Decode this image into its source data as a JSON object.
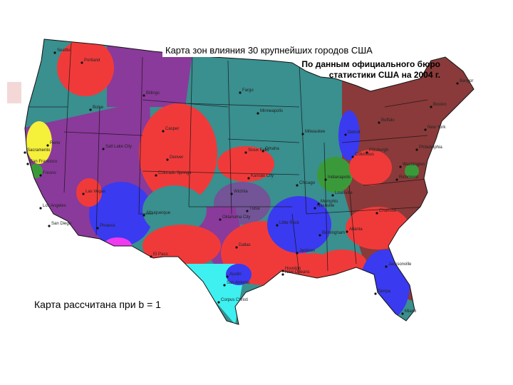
{
  "title": "Карта зон влияния 30 крупнейших городов США",
  "source": [
    "По данным официального бюро",
    "статистики США на 2004 г."
  ],
  "note": "Карта рассчитана при b = 1",
  "cities": [
    "Seattle",
    "Portland",
    "Boise",
    "Billings",
    "Sacramento",
    "San Francisco",
    "Fresno",
    "Los Angeles",
    "San Diego",
    "Las Vegas",
    "Phoenix",
    "Salt Lake City",
    "Reno",
    "Casper",
    "Denver",
    "Colorado Springs",
    "Albuquerque",
    "Fargo",
    "Minneapolis",
    "Sioux Falls",
    "Omaha",
    "Kansas City",
    "Wichita",
    "Oklahoma City",
    "Tulsa",
    "Dallas",
    "Austin",
    "San Antonio",
    "Houston",
    "Corpus Christi",
    "El Paso",
    "Milwaukee",
    "Detroit",
    "Chicago",
    "Indianapolis",
    "Louisville",
    "Nashville",
    "Memphis",
    "Little Rock",
    "Jackson",
    "Birmingham",
    "Atlanta",
    "New Orleans",
    "Jacksonville",
    "Tampa",
    "Miami",
    "Charlotte",
    "Richmond",
    "Washington",
    "Philadelphia",
    "New York",
    "Boston",
    "Pittsburgh",
    "Buffalo",
    "Columbus",
    "Bangor"
  ]
}
